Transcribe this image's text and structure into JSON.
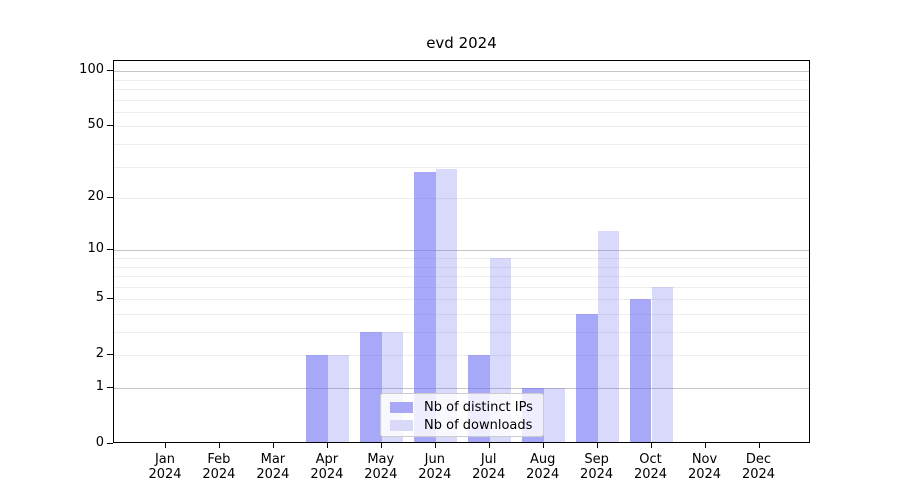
{
  "chart_data": {
    "type": "bar",
    "title": "evd 2024",
    "categories": [
      "Jan",
      "Feb",
      "Mar",
      "Apr",
      "May",
      "Jun",
      "Jul",
      "Aug",
      "Sep",
      "Oct",
      "Nov",
      "Dec"
    ],
    "category_year": "2024",
    "series": [
      {
        "name": "Nb of distinct IPs",
        "base_color": "#6e6ef5",
        "alpha": 0.6,
        "legend_color": "#a8a8f7",
        "values": [
          0,
          0,
          0,
          2,
          3,
          28,
          2,
          1,
          4,
          5,
          0,
          0
        ]
      },
      {
        "name": "Nb of downloads",
        "base_color": "#6e6ef5",
        "alpha": 0.26,
        "legend_color": "#d9d9f9",
        "values": [
          0,
          0,
          0,
          2,
          3,
          29,
          9,
          1,
          13,
          6,
          0,
          0
        ]
      }
    ],
    "yscale": "log1p",
    "ylabel": "",
    "xlabel": "",
    "yticks": [
      0,
      1,
      2,
      5,
      10,
      20,
      50,
      100
    ],
    "major_gridlines": [
      1,
      10,
      100
    ],
    "minor_gridlines": [
      2,
      3,
      4,
      5,
      6,
      7,
      8,
      9,
      20,
      30,
      40,
      50,
      60,
      70,
      80,
      90
    ],
    "ylim": [
      0,
      116
    ],
    "grid": true,
    "legend_position": "bottom-center",
    "colors": {
      "bar_dark": "#a8a8f7",
      "bar_light": "#d9d9f9",
      "grid_major": "#c6c6c6",
      "grid_minor": "#ededed",
      "axis": "#000000",
      "legend_border": "#cccccc"
    }
  }
}
